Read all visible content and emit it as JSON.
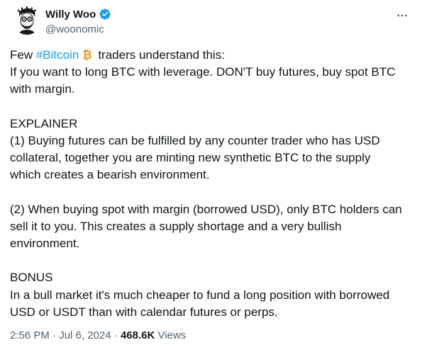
{
  "author": {
    "display_name": "Willy Woo",
    "handle": "@woonomic",
    "verified_color": "#1d9bf0"
  },
  "menu": {
    "icon": "more-horizontal-icon"
  },
  "tweet": {
    "line1": {
      "prefix": "Few ",
      "hashtag": "#Bitcoin",
      "emoji": "bitcoin-emoji",
      "suffix": "traders understand this:"
    },
    "lines": [
      "If you want to long BTC with leverage. DON'T buy futures, buy spot BTC",
      "with margin.",
      "",
      "EXPLAINER",
      "(1) Buying futures can be fulfilled by any counter trader who has USD",
      "collateral, together you are minting new synthetic BTC to the supply",
      "which creates a bearish environment.",
      "",
      "(2) When buying spot with margin (borrowed USD), only BTC holders can",
      "sell it to you. This creates a supply shortage and a very bullish",
      "environment.",
      "",
      "BONUS",
      "In a bull market it's much cheaper to fund a long position with borrowed",
      "USD or USDT than with calendar futures or perps."
    ]
  },
  "footer": {
    "time": "2:56 PM",
    "sep1": " · ",
    "date": "Jul 6, 2024",
    "sep2": " · ",
    "views_count": "468.6K",
    "views_label": " Views"
  }
}
